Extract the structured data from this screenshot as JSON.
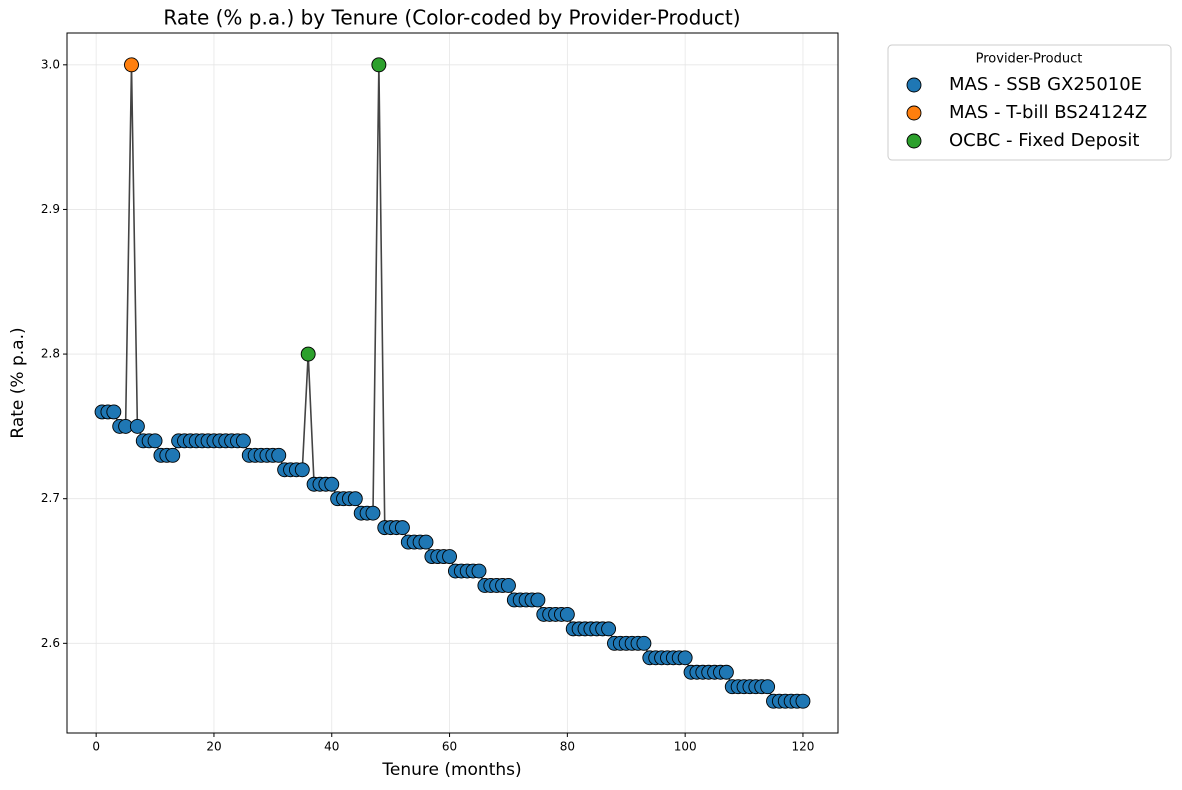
{
  "chart_data": {
    "type": "scatter",
    "title": "Rate (% p.a.) by Tenure (Color-coded by Provider-Product)",
    "x_label": "Tenure (months)",
    "y_label": "Rate (% p.a.)",
    "legend_title": "Provider-Product",
    "legend_loc": "outside upper right",
    "grid": true,
    "xlim": [
      -4.95,
      125.95
    ],
    "ylim": [
      2.538,
      3.022
    ],
    "xticks": [
      0,
      20,
      40,
      60,
      80,
      100,
      120
    ],
    "yticks": [
      2.6,
      2.7,
      2.8,
      2.9,
      {
        "value": 3,
        "label": "3.0"
      }
    ],
    "line": {
      "color": "#444444",
      "x": [
        1,
        2,
        3,
        4,
        5,
        6,
        7,
        8,
        9,
        10,
        11,
        12,
        13,
        14,
        15,
        16,
        17,
        18,
        19,
        20,
        21,
        22,
        23,
        24,
        25,
        26,
        27,
        28,
        29,
        30,
        31,
        32,
        33,
        34,
        35,
        36,
        37,
        38,
        39,
        40,
        41,
        42,
        43,
        44,
        45,
        46,
        47,
        48,
        49,
        50,
        51,
        52,
        53,
        54,
        55,
        56,
        57,
        58,
        59,
        60,
        61,
        62,
        63,
        64,
        65,
        66,
        67,
        68,
        69,
        70,
        71,
        72,
        73,
        74,
        75,
        76,
        77,
        78,
        79,
        80,
        81,
        82,
        83,
        84,
        85,
        86,
        87,
        88,
        89,
        90,
        91,
        92,
        93,
        94,
        95,
        96,
        97,
        98,
        99,
        100,
        101,
        102,
        103,
        104,
        105,
        106,
        107,
        108,
        109,
        110,
        111,
        112,
        113,
        114,
        115,
        116,
        117,
        118,
        119,
        120
      ],
      "values": [
        2.76,
        2.76,
        2.76,
        2.75,
        2.75,
        3.0,
        2.75,
        2.74,
        2.74,
        2.74,
        2.73,
        2.73,
        2.73,
        2.74,
        2.74,
        2.74,
        2.74,
        2.74,
        2.74,
        2.74,
        2.74,
        2.74,
        2.74,
        2.74,
        2.74,
        2.73,
        2.73,
        2.73,
        2.73,
        2.73,
        2.73,
        2.72,
        2.72,
        2.72,
        2.72,
        2.8,
        2.71,
        2.71,
        2.71,
        2.71,
        2.7,
        2.7,
        2.7,
        2.7,
        2.69,
        2.69,
        2.69,
        3.0,
        2.68,
        2.68,
        2.68,
        2.68,
        2.67,
        2.67,
        2.67,
        2.67,
        2.66,
        2.66,
        2.66,
        2.66,
        2.65,
        2.65,
        2.65,
        2.65,
        2.65,
        2.64,
        2.64,
        2.64,
        2.64,
        2.64,
        2.63,
        2.63,
        2.63,
        2.63,
        2.63,
        2.62,
        2.62,
        2.62,
        2.62,
        2.62,
        2.61,
        2.61,
        2.61,
        2.61,
        2.61,
        2.61,
        2.61,
        2.6,
        2.6,
        2.6,
        2.6,
        2.6,
        2.6,
        2.59,
        2.59,
        2.59,
        2.59,
        2.59,
        2.59,
        2.59,
        2.58,
        2.58,
        2.58,
        2.58,
        2.58,
        2.58,
        2.58,
        2.57,
        2.57,
        2.57,
        2.57,
        2.57,
        2.57,
        2.57,
        2.56,
        2.56,
        2.56,
        2.56,
        2.56,
        2.56
      ]
    },
    "series": [
      {
        "name": "MAS - SSB GX25010E",
        "color": "#1f77b4",
        "x": [
          1,
          2,
          3,
          4,
          5,
          7,
          8,
          9,
          10,
          11,
          12,
          13,
          14,
          15,
          16,
          17,
          18,
          19,
          20,
          21,
          22,
          23,
          24,
          25,
          26,
          27,
          28,
          29,
          30,
          31,
          32,
          33,
          34,
          35,
          37,
          38,
          39,
          40,
          41,
          42,
          43,
          44,
          45,
          46,
          47,
          49,
          50,
          51,
          52,
          53,
          54,
          55,
          56,
          57,
          58,
          59,
          60,
          61,
          62,
          63,
          64,
          65,
          66,
          67,
          68,
          69,
          70,
          71,
          72,
          73,
          74,
          75,
          76,
          77,
          78,
          79,
          80,
          81,
          82,
          83,
          84,
          85,
          86,
          87,
          88,
          89,
          90,
          91,
          92,
          93,
          94,
          95,
          96,
          97,
          98,
          99,
          100,
          101,
          102,
          103,
          104,
          105,
          106,
          107,
          108,
          109,
          110,
          111,
          112,
          113,
          114,
          115,
          116,
          117,
          118,
          119,
          120
        ],
        "values": [
          2.76,
          2.76,
          2.76,
          2.75,
          2.75,
          2.75,
          2.74,
          2.74,
          2.74,
          2.73,
          2.73,
          2.73,
          2.74,
          2.74,
          2.74,
          2.74,
          2.74,
          2.74,
          2.74,
          2.74,
          2.74,
          2.74,
          2.74,
          2.74,
          2.73,
          2.73,
          2.73,
          2.73,
          2.73,
          2.73,
          2.72,
          2.72,
          2.72,
          2.72,
          2.71,
          2.71,
          2.71,
          2.71,
          2.7,
          2.7,
          2.7,
          2.7,
          2.69,
          2.69,
          2.69,
          2.68,
          2.68,
          2.68,
          2.68,
          2.67,
          2.67,
          2.67,
          2.67,
          2.66,
          2.66,
          2.66,
          2.66,
          2.65,
          2.65,
          2.65,
          2.65,
          2.65,
          2.64,
          2.64,
          2.64,
          2.64,
          2.64,
          2.63,
          2.63,
          2.63,
          2.63,
          2.63,
          2.62,
          2.62,
          2.62,
          2.62,
          2.62,
          2.61,
          2.61,
          2.61,
          2.61,
          2.61,
          2.61,
          2.61,
          2.6,
          2.6,
          2.6,
          2.6,
          2.6,
          2.6,
          2.59,
          2.59,
          2.59,
          2.59,
          2.59,
          2.59,
          2.59,
          2.58,
          2.58,
          2.58,
          2.58,
          2.58,
          2.58,
          2.58,
          2.57,
          2.57,
          2.57,
          2.57,
          2.57,
          2.57,
          2.57,
          2.56,
          2.56,
          2.56,
          2.56,
          2.56,
          2.56
        ]
      },
      {
        "name": "MAS - T-bill BS24124Z",
        "color": "#ff7f0e",
        "x": [
          6
        ],
        "values": [
          3.0
        ]
      },
      {
        "name": "OCBC - Fixed Deposit",
        "color": "#2ca02c",
        "x": [
          36,
          48
        ],
        "values": [
          2.8,
          3.0
        ]
      }
    ]
  }
}
